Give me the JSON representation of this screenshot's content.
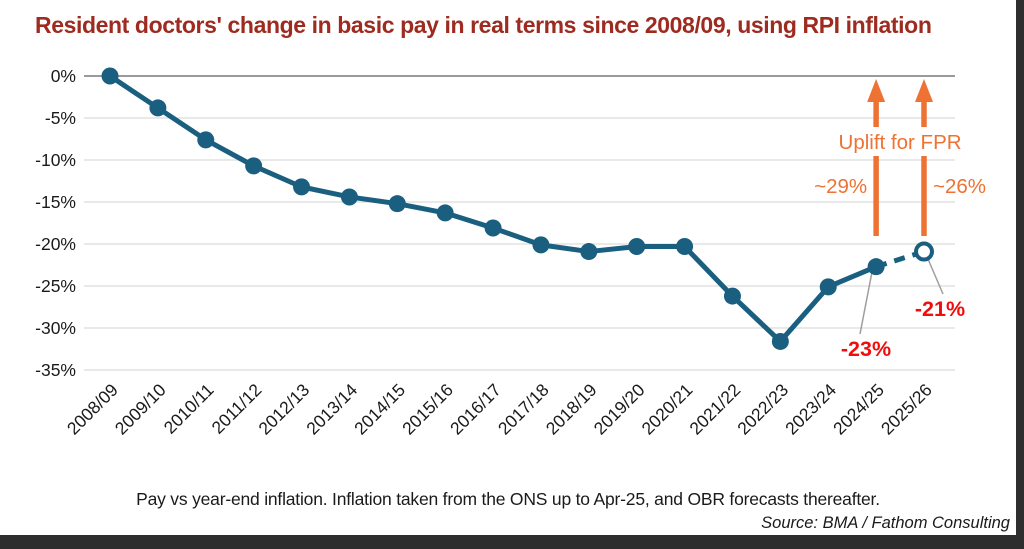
{
  "chart_data": {
    "type": "line",
    "title": "Resident doctors' change in basic pay in real terms since 2008/09, using RPI inflation",
    "categories": [
      "2008/09",
      "2009/10",
      "2010/11",
      "2011/12",
      "2012/13",
      "2013/14",
      "2014/15",
      "2015/16",
      "2016/17",
      "2017/18",
      "2018/19",
      "2019/20",
      "2020/21",
      "2021/22",
      "2022/23",
      "2023/24",
      "2024/25",
      "2025/26"
    ],
    "series": [
      {
        "name": "Change in basic pay in real terms (RPI)",
        "values": [
          0,
          -3.8,
          -7.6,
          -10.7,
          -13.2,
          -14.4,
          -15.2,
          -16.3,
          -18.1,
          -20.1,
          -20.9,
          -20.3,
          -20.3,
          -26.2,
          -31.6,
          -25.1,
          -22.7,
          -20.9
        ],
        "forecast_from_index": 16
      }
    ],
    "ylim": [
      -35,
      0
    ],
    "yticks": [
      {
        "value": 0,
        "label": "0%"
      },
      {
        "value": -5,
        "label": "-5%"
      },
      {
        "value": -10,
        "label": "-10%"
      },
      {
        "value": -15,
        "label": "-15%"
      },
      {
        "value": -20,
        "label": "-20%"
      },
      {
        "value": -25,
        "label": "-25%"
      },
      {
        "value": -30,
        "label": "-30%"
      },
      {
        "value": -35,
        "label": "-35%"
      }
    ],
    "grid": "horizontal",
    "legend": "none",
    "annotations": {
      "uplift_text": "Uplift for FPR",
      "arrows": [
        {
          "category": "2024/25",
          "label": "~29%"
        },
        {
          "category": "2025/26",
          "label": "~26%"
        }
      ],
      "point_labels": [
        {
          "category": "2024/25",
          "label": "-23%"
        },
        {
          "category": "2025/26",
          "label": "-21%"
        }
      ]
    }
  },
  "footer": {
    "subtitle": "Pay vs year-end inflation. Inflation taken from the ONS up to Apr-25, and OBR forecasts thereafter.",
    "source": "Source: BMA / Fathom Consulting"
  },
  "colors": {
    "line": "#1A5F80",
    "title": "#9E2B20",
    "orange": "#ED7233",
    "red": "#F20D0D",
    "grid": "#DCDCDC",
    "zero_line": "#9A9A9A",
    "leader": "#9E9E9E",
    "axis_text": "#1A1A1A",
    "frame_edge": "#2E2E2E"
  }
}
